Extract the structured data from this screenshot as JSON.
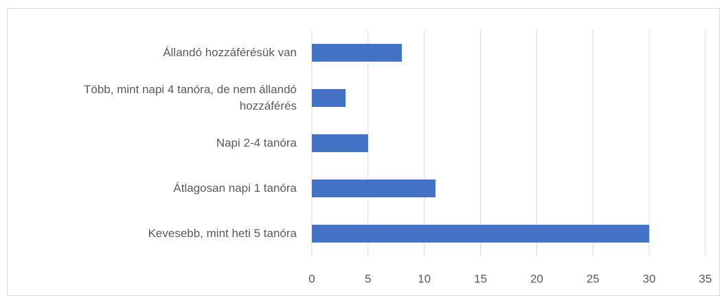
{
  "chart_data": {
    "type": "hbar",
    "categories": [
      "Állandó hozzáférésük van",
      "Több, mint napi 4 tanóra, de nem állandó hozzáférés",
      "Napi 2-4 tanóra",
      "Átlagosan napi 1 tanóra",
      "Kevesebb, mint heti 5 tanóra"
    ],
    "values": [
      8,
      3,
      5,
      11,
      30
    ],
    "color": "#4472c4",
    "xlim": [
      0,
      35
    ],
    "xticks": [
      0,
      5,
      10,
      15,
      20,
      25,
      30,
      35
    ],
    "grid": true
  }
}
